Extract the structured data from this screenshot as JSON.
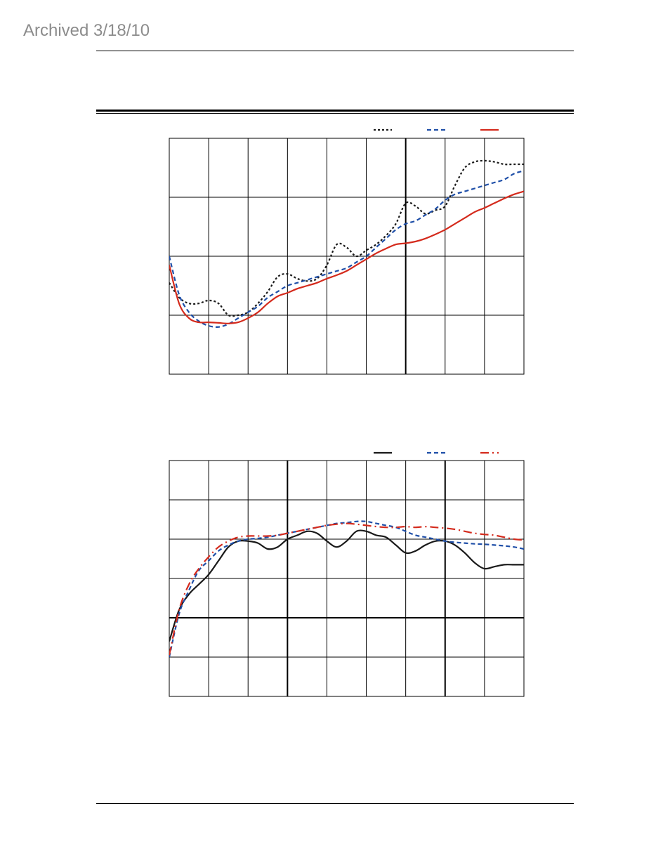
{
  "page": {
    "archived_label": "Archived 3/18/10"
  },
  "chart_data": [
    {
      "type": "line",
      "title": "",
      "xlabel": "",
      "ylabel": "",
      "xlim": [
        0,
        18
      ],
      "ylim": [
        0,
        4
      ],
      "grid": true,
      "x_gridlines": 9,
      "y_gridlines": 4,
      "emphasized_x_gridlines": [
        12
      ],
      "legend_position": "top-right",
      "series": [
        {
          "color": "#1a1a1a",
          "dash": "dotted",
          "x": [
            0,
            0.5,
            1,
            1.5,
            2,
            2.5,
            3,
            3.5,
            4,
            4.5,
            5,
            5.5,
            6,
            6.5,
            7,
            7.5,
            8,
            8.5,
            9,
            9.5,
            10,
            10.5,
            11,
            11.5,
            12,
            12.5,
            13,
            13.5,
            14,
            14.5,
            15,
            15.5,
            16,
            16.5,
            17,
            17.5,
            18
          ],
          "y": [
            1.55,
            1.3,
            1.2,
            1.2,
            1.25,
            1.2,
            1.0,
            1.0,
            1.05,
            1.2,
            1.4,
            1.65,
            1.7,
            1.62,
            1.58,
            1.62,
            1.85,
            2.2,
            2.15,
            2.0,
            2.1,
            2.2,
            2.35,
            2.55,
            2.9,
            2.85,
            2.72,
            2.78,
            2.85,
            3.2,
            3.5,
            3.6,
            3.62,
            3.6,
            3.56,
            3.56,
            3.56
          ]
        },
        {
          "color": "#1f4fa8",
          "dash": "dashed",
          "x": [
            0,
            0.5,
            1,
            1.5,
            2,
            2.5,
            3,
            3.5,
            4,
            4.5,
            5,
            5.5,
            6,
            6.5,
            7,
            7.5,
            8,
            8.5,
            9,
            9.5,
            10,
            10.5,
            11,
            11.5,
            12,
            12.5,
            13,
            13.5,
            14,
            14.5,
            15,
            15.5,
            16,
            16.5,
            17,
            17.5,
            18
          ],
          "y": [
            2.0,
            1.35,
            1.05,
            0.9,
            0.82,
            0.8,
            0.85,
            0.95,
            1.05,
            1.15,
            1.3,
            1.4,
            1.5,
            1.55,
            1.6,
            1.65,
            1.7,
            1.75,
            1.8,
            1.9,
            2.0,
            2.15,
            2.3,
            2.45,
            2.55,
            2.6,
            2.7,
            2.8,
            2.95,
            3.05,
            3.1,
            3.15,
            3.2,
            3.25,
            3.3,
            3.4,
            3.45
          ]
        },
        {
          "color": "#d42a1c",
          "dash": "solid",
          "x": [
            0,
            0.5,
            1,
            1.5,
            2,
            2.5,
            3,
            3.5,
            4,
            4.5,
            5,
            5.5,
            6,
            6.5,
            7,
            7.5,
            8,
            8.5,
            9,
            9.5,
            10,
            10.5,
            11,
            11.5,
            12,
            12.5,
            13,
            13.5,
            14,
            14.5,
            15,
            15.5,
            16,
            16.5,
            17,
            17.5,
            18
          ],
          "y": [
            1.85,
            1.2,
            0.95,
            0.88,
            0.88,
            0.87,
            0.86,
            0.88,
            0.95,
            1.05,
            1.2,
            1.32,
            1.38,
            1.45,
            1.5,
            1.55,
            1.62,
            1.68,
            1.75,
            1.85,
            1.95,
            2.05,
            2.13,
            2.2,
            2.22,
            2.25,
            2.3,
            2.37,
            2.45,
            2.55,
            2.65,
            2.75,
            2.82,
            2.9,
            2.98,
            3.05,
            3.1
          ]
        }
      ]
    },
    {
      "type": "line",
      "title": "",
      "xlabel": "",
      "ylabel": "",
      "xlim": [
        0,
        18
      ],
      "ylim": [
        0,
        6
      ],
      "grid": true,
      "x_gridlines": 9,
      "y_gridlines": 6,
      "emphasized_x_gridlines": [
        6,
        14
      ],
      "emphasized_y_gridlines": [
        2
      ],
      "legend_position": "top-right",
      "series": [
        {
          "color": "#1a1a1a",
          "dash": "solid",
          "x": [
            0,
            0.5,
            1,
            1.5,
            2,
            2.5,
            3,
            3.5,
            4,
            4.5,
            5,
            5.5,
            6,
            6.5,
            7,
            7.5,
            8,
            8.5,
            9,
            9.5,
            10,
            10.5,
            11,
            11.5,
            12,
            12.5,
            13,
            13.5,
            14,
            14.5,
            15,
            15.5,
            16,
            16.5,
            17,
            17.5,
            18
          ],
          "y": [
            1.4,
            2.2,
            2.6,
            2.85,
            3.1,
            3.45,
            3.8,
            3.95,
            3.95,
            3.9,
            3.75,
            3.8,
            4.0,
            4.1,
            4.2,
            4.15,
            3.95,
            3.8,
            3.95,
            4.2,
            4.2,
            4.1,
            4.05,
            3.85,
            3.65,
            3.7,
            3.85,
            3.95,
            3.95,
            3.85,
            3.65,
            3.4,
            3.25,
            3.3,
            3.35,
            3.35,
            3.35
          ]
        },
        {
          "color": "#1f4fa8",
          "dash": "dashed",
          "x": [
            0,
            0.5,
            1,
            1.5,
            2,
            2.5,
            3,
            3.5,
            4,
            4.5,
            5,
            5.5,
            6,
            6.5,
            7,
            7.5,
            8,
            8.5,
            9,
            9.5,
            10,
            10.5,
            11,
            11.5,
            12,
            12.5,
            13,
            13.5,
            14,
            14.5,
            15,
            15.5,
            16,
            16.5,
            17,
            17.5,
            18
          ],
          "y": [
            1.0,
            2.1,
            2.7,
            3.2,
            3.45,
            3.7,
            3.85,
            3.95,
            4.0,
            4.02,
            4.05,
            4.1,
            4.15,
            4.2,
            4.25,
            4.3,
            4.35,
            4.4,
            4.42,
            4.45,
            4.45,
            4.4,
            4.35,
            4.3,
            4.2,
            4.1,
            4.05,
            4.0,
            3.95,
            3.92,
            3.9,
            3.88,
            3.87,
            3.85,
            3.83,
            3.8,
            3.75
          ]
        },
        {
          "color": "#d42a1c",
          "dash": "longdash-dot",
          "x": [
            0,
            0.5,
            1,
            1.5,
            2,
            2.5,
            3,
            3.5,
            4,
            4.5,
            5,
            5.5,
            6,
            6.5,
            7,
            7.5,
            8,
            8.5,
            9,
            9.5,
            10,
            10.5,
            11,
            11.5,
            12,
            12.5,
            13,
            13.5,
            14,
            14.5,
            15,
            15.5,
            16,
            16.5,
            17,
            17.5,
            18
          ],
          "y": [
            1.05,
            2.2,
            2.85,
            3.25,
            3.55,
            3.8,
            3.95,
            4.05,
            4.08,
            4.08,
            4.08,
            4.1,
            4.15,
            4.2,
            4.25,
            4.3,
            4.35,
            4.38,
            4.4,
            4.38,
            4.35,
            4.32,
            4.3,
            4.3,
            4.32,
            4.3,
            4.32,
            4.3,
            4.28,
            4.25,
            4.2,
            4.15,
            4.12,
            4.1,
            4.05,
            4.0,
            3.98
          ]
        }
      ]
    }
  ]
}
